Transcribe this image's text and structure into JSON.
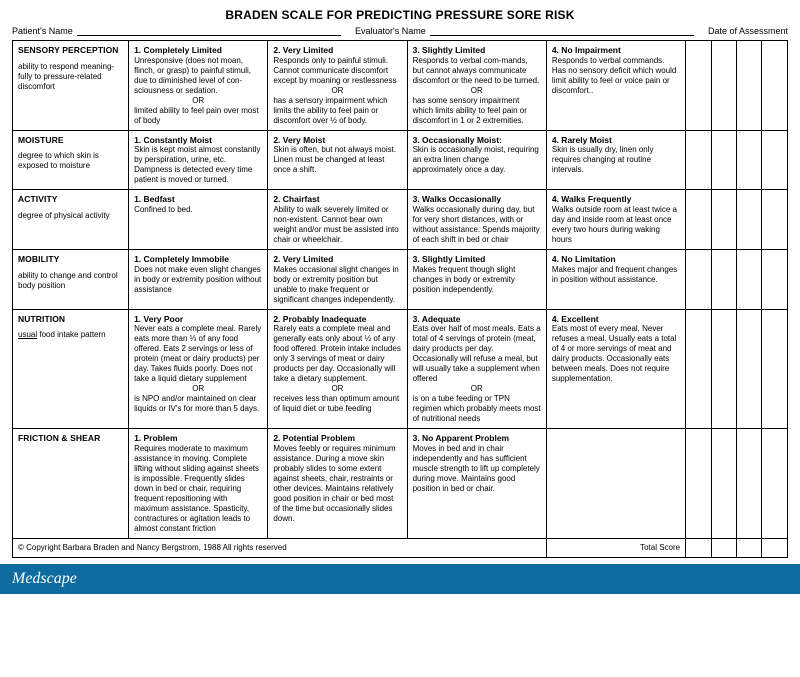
{
  "title": "BRADEN SCALE FOR PREDICTING PRESSURE SORE RISK",
  "header": {
    "patient_label": "Patient's Name",
    "evaluator_label": "Evaluator's Name",
    "date_label": "Date of Assessment"
  },
  "rows": [
    {
      "category": "SENSORY PERCEPTION",
      "cat_desc": "ability to respond meaning-fully to pressure-related discomfort",
      "levels": [
        {
          "title": "1. Completely Limited",
          "desc": "Unresponsive (does not moan, flinch, or grasp) to painful stimuli, due to diminished level of con-sciousness or sedation.",
          "or": true,
          "desc2": "limited ability to feel pain over most of body"
        },
        {
          "title": "2. Very Limited",
          "desc": "Responds only to painful stimuli.  Cannot communicate discomfort except by moaning or restlessness",
          "or": true,
          "desc2": "has a sensory impairment which limits the ability to feel pain or discomfort over ½ of body."
        },
        {
          "title": "3. Slightly Limited",
          "desc": "Responds to verbal com-mands, but cannot always communicate discomfort or the need to be turned.",
          "or": true,
          "desc2": "has some sensory impairment which limits ability to feel pain or discomfort in 1 or 2 extremities."
        },
        {
          "title": "4. No Impairment",
          "desc": "Responds to verbal commands.  Has no sensory deficit which would limit ability to feel or voice pain or discomfort.."
        }
      ]
    },
    {
      "category": "MOISTURE",
      "cat_desc": "degree to which skin is exposed to moisture",
      "levels": [
        {
          "title": "1. Constantly Moist",
          "desc": "Skin is kept moist almost constantly by perspiration, urine, etc.  Dampness is detected every time patient is moved or turned."
        },
        {
          "title": "2.  Very Moist",
          "desc": "Skin is often, but not always moist. Linen must be changed at least once a shift."
        },
        {
          "title": "3.  Occasionally Moist:",
          "desc": "Skin is occasionally moist, requiring an extra linen change approximately once a day."
        },
        {
          "title": "4.  Rarely Moist",
          "desc": "Skin is usually dry, linen only requires changing at routine intervals."
        }
      ]
    },
    {
      "category": "ACTIVITY",
      "cat_desc": "degree of physical activity",
      "levels": [
        {
          "title": "1.  Bedfast",
          "desc": "Confined to bed."
        },
        {
          "title": "2.  Chairfast",
          "desc": "Ability to walk severely limited or non-existent. Cannot bear own weight and/or must be assisted into chair or wheelchair."
        },
        {
          "title": "3.  Walks Occasionally",
          "desc": "Walks occasionally during day, but for very short distances, with or without assistance. Spends majority of each shift in bed or chair"
        },
        {
          "title": "4.  Walks Frequently",
          "desc": "Walks outside room at least twice a day and inside room at least once every two hours during waking hours"
        }
      ]
    },
    {
      "category": "MOBILITY",
      "cat_desc": "ability to change and control body position",
      "levels": [
        {
          "title": "1. Completely Immobile",
          "desc": "Does not make even slight changes in body or extremity position without assistance"
        },
        {
          "title": "2.  Very Limited",
          "desc": "Makes occasional slight changes in body or extremity position but unable to make frequent or significant changes independently."
        },
        {
          "title": "3.  Slightly Limited",
          "desc": "Makes frequent though slight changes in body or extremity position independently."
        },
        {
          "title": "4.  No Limitation",
          "desc": "Makes major and frequent changes in position without assistance."
        }
      ]
    },
    {
      "category": "NUTRITION",
      "cat_desc_html": "<span class='underline'>usual</span> food intake pattern",
      "levels": [
        {
          "title": "1. Very Poor",
          "desc": "Never eats a complete meal. Rarely eats more than ⅓ of any food offered.  Eats 2 servings or less of protein (meat or dairy products) per day.  Takes fluids poorly.  Does not take a liquid dietary supplement",
          "or": true,
          "desc2": "is NPO and/or maintained on clear liquids or IV's for more than 5 days."
        },
        {
          "title": "2. Probably Inadequate",
          "desc": "Rarely eats a complete meal and generally eats only about ½ of any food offered.  Protein intake includes only 3 servings of meat or dairy products per day. Occasionally will take a dietary supplement.",
          "or": true,
          "desc2": "receives less than optimum amount of liquid diet or tube feeding"
        },
        {
          "title": "3.  Adequate",
          "desc": "Eats over half of most meals.  Eats a total of 4 servings of protein (meat, dairy products per day. Occasionally will refuse a meal, but will usually take a supplement when offered",
          "or": true,
          "desc2": "is on a tube feeding or TPN regimen which probably meets most of nutritional needs"
        },
        {
          "title": "4.  Excellent",
          "desc": "Eats most of every meal. Never refuses a meal. Usually eats a total of 4 or more servings of meat and dairy products. Occasionally eats between meals.  Does not require supplementation."
        }
      ]
    },
    {
      "category": "FRICTION & SHEAR",
      "cat_desc": "",
      "levels": [
        {
          "title": "1. Problem",
          "desc": "Requires moderate to maximum assistance in moving.  Complete lifting without sliding against sheets is impossible.  Frequently slides down in bed or chair, requiring frequent repositioning with maximum assistance. Spasticity, contractures or agitation leads to almost constant friction"
        },
        {
          "title": "2. Potential Problem",
          "desc": "Moves feebly or requires minimum assistance.  During a move skin probably slides to some extent against sheets, chair, restraints or other devices.  Maintains relatively good position in chair or bed most of the time but occasionally slides down."
        },
        {
          "title": "3.  No Apparent Problem",
          "desc": "Moves in bed and in chair independently and has sufficient muscle strength to lift up completely during move.  Maintains good position in bed or chair."
        },
        {
          "empty": true
        }
      ]
    }
  ],
  "copyright": "© Copyright Barbara Braden and Nancy Bergstrom, 1988   All rights reserved",
  "total_label": "Total Score",
  "brand": "Medscape",
  "colors": {
    "brand_bg": "#0f6aa0",
    "border": "#000000"
  }
}
